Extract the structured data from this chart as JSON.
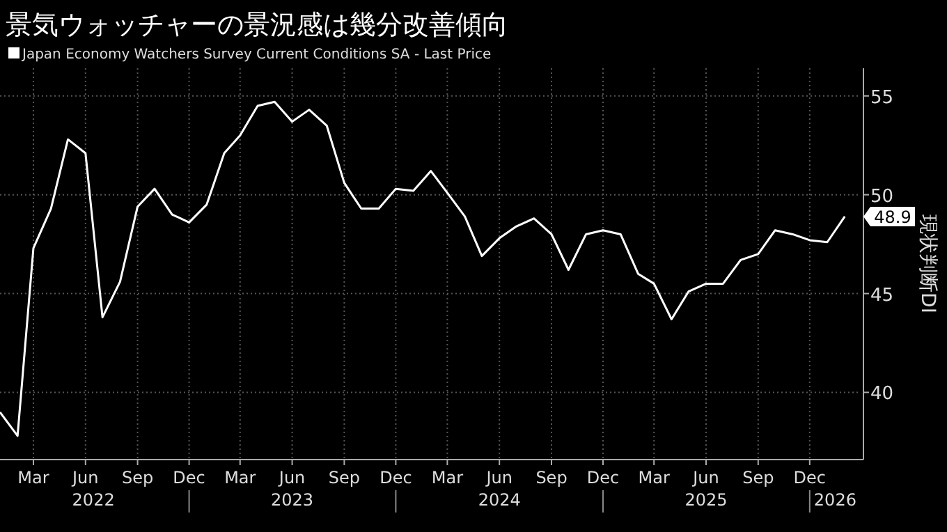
{
  "chart_data": {
    "type": "line",
    "title": "景気ウォッチャーの景況感は幾分改善傾向",
    "ylabel": "現状判断DI",
    "x": [
      "2022-01",
      "2022-02",
      "2022-03",
      "2022-04",
      "2022-05",
      "2022-06",
      "2022-07",
      "2022-08",
      "2022-09",
      "2022-10",
      "2022-11",
      "2022-12",
      "2023-01",
      "2023-02",
      "2023-03",
      "2023-04",
      "2023-05",
      "2023-06",
      "2023-07",
      "2023-08",
      "2023-09",
      "2023-10",
      "2023-11",
      "2023-12",
      "2024-01",
      "2024-02",
      "2024-03",
      "2024-04",
      "2024-05",
      "2024-06",
      "2024-07",
      "2024-08",
      "2024-09",
      "2024-10",
      "2024-11",
      "2024-12",
      "2025-01",
      "2025-02",
      "2025-03",
      "2025-04",
      "2025-05",
      "2025-06",
      "2025-07",
      "2025-08",
      "2025-09",
      "2025-10",
      "2025-11",
      "2025-12",
      "2026-01",
      "2026-02"
    ],
    "series": [
      {
        "name": "Japan Economy Watchers Survey Current Conditions SA - Last Price",
        "color": "#ffffff",
        "values": [
          39.0,
          37.8,
          47.3,
          49.3,
          52.8,
          52.1,
          43.8,
          45.6,
          49.4,
          50.3,
          49.0,
          48.6,
          49.5,
          52.1,
          53.0,
          54.5,
          54.7,
          53.7,
          54.3,
          53.5,
          50.6,
          49.3,
          49.3,
          50.3,
          50.2,
          51.2,
          50.1,
          48.9,
          46.9,
          47.8,
          48.4,
          48.8,
          48.0,
          46.2,
          48.0,
          48.2,
          48.0,
          46.0,
          45.5,
          43.7,
          45.1,
          45.5,
          45.5,
          46.7,
          47.0,
          48.2,
          48.0,
          47.7,
          47.6,
          48.9
        ],
        "value_labels": [
          null,
          null,
          null,
          null,
          null,
          null,
          null,
          null,
          null,
          null,
          null,
          null,
          null,
          null,
          null,
          null,
          null,
          null,
          null,
          null,
          null,
          null,
          null,
          null,
          null,
          null,
          null,
          null,
          null,
          null,
          null,
          null,
          null,
          null,
          null,
          null,
          null,
          null,
          null,
          null,
          null,
          null,
          null,
          null,
          null,
          null,
          null,
          null,
          null,
          "48.9"
        ]
      }
    ],
    "xlim": [
      "2022-01",
      "2026-03"
    ],
    "xticks": [
      {
        "value": "2022-03",
        "label": "Mar"
      },
      {
        "value": "2022-06",
        "label": "Jun"
      },
      {
        "value": "2022-09",
        "label": "Sep"
      },
      {
        "value": "2022-12",
        "label": "Dec"
      },
      {
        "value": "2023-03",
        "label": "Mar"
      },
      {
        "value": "2023-06",
        "label": "Jun"
      },
      {
        "value": "2023-09",
        "label": "Sep"
      },
      {
        "value": "2023-12",
        "label": "Dec"
      },
      {
        "value": "2024-03",
        "label": "Mar"
      },
      {
        "value": "2024-06",
        "label": "Jun"
      },
      {
        "value": "2024-09",
        "label": "Sep"
      },
      {
        "value": "2024-12",
        "label": "Dec"
      },
      {
        "value": "2025-03",
        "label": "Mar"
      },
      {
        "value": "2025-06",
        "label": "Jun"
      },
      {
        "value": "2025-09",
        "label": "Sep"
      },
      {
        "value": "2025-12",
        "label": "Dec"
      }
    ],
    "x2lim": [
      "2022-01",
      "2026-03"
    ],
    "x2ticks": [
      {
        "value": "2022-06-15",
        "label": "2022"
      },
      {
        "value": "2022-12",
        "label": null
      },
      {
        "value": "2023-06",
        "label": "2023"
      },
      {
        "value": "2023-12",
        "label": null
      },
      {
        "value": "2024-06",
        "label": "2024"
      },
      {
        "value": "2024-12",
        "label": null
      },
      {
        "value": "2025-06",
        "label": "2025"
      },
      {
        "value": "2025-12",
        "label": null
      },
      {
        "value": "2026-01-15",
        "label": "2026"
      }
    ],
    "ylim": [
      36.6,
      56.4
    ],
    "yticks": [
      40,
      45,
      50,
      55
    ],
    "grid": true,
    "legend": "top left",
    "line_style": "solid",
    "marker": "none"
  }
}
